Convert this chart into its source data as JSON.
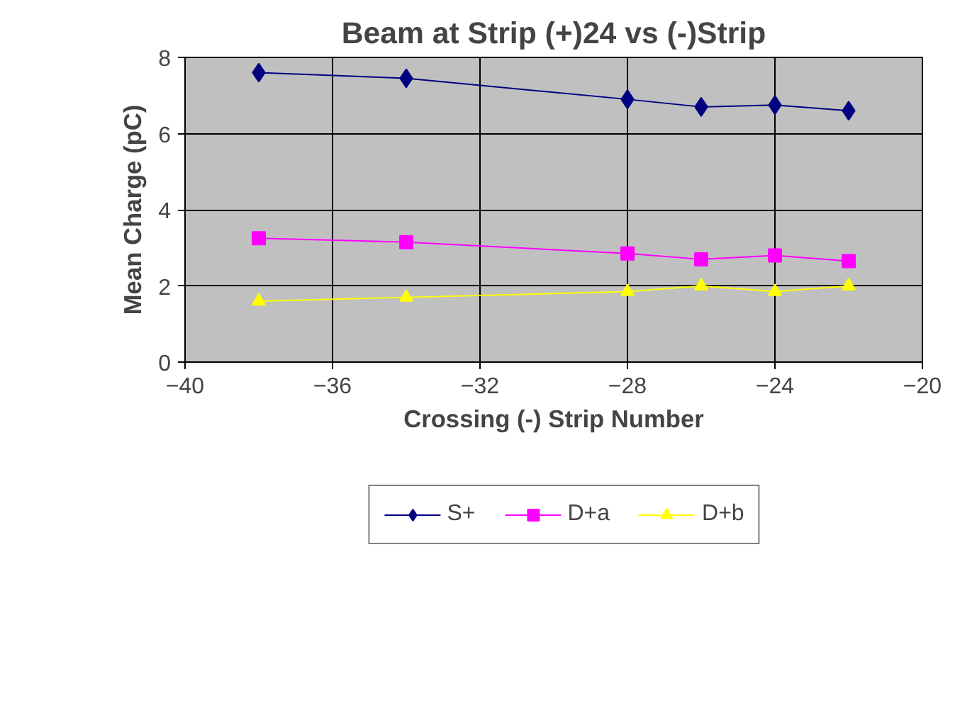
{
  "chart_data": {
    "type": "line",
    "title": "Beam at Strip (+)24 vs (-)Strip",
    "xlabel": "Crossing (-) Strip Number",
    "ylabel": "Mean Charge (pC)",
    "x": [
      -38,
      -34,
      -28,
      -26,
      -24,
      -22
    ],
    "series": [
      {
        "name": "S+",
        "color": "#000080",
        "marker": "diamond",
        "values": [
          7.6,
          7.45,
          6.9,
          6.7,
          6.75,
          6.6
        ]
      },
      {
        "name": "D+a",
        "color": "#ff00ff",
        "marker": "square",
        "values": [
          3.25,
          3.15,
          2.85,
          2.7,
          2.8,
          2.65
        ]
      },
      {
        "name": "D+b",
        "color": "#ffff00",
        "marker": "triangle",
        "values": [
          1.6,
          1.7,
          1.85,
          2.0,
          1.85,
          2.0
        ]
      }
    ],
    "xlim": [
      -40,
      -20
    ],
    "xticks": [
      -40,
      -36,
      -32,
      -28,
      -24,
      -20
    ],
    "ylim": [
      0,
      8
    ],
    "yticks": [
      0,
      2,
      4,
      6,
      8
    ],
    "grid": true,
    "legend": "bottom",
    "line_style": "solid"
  }
}
